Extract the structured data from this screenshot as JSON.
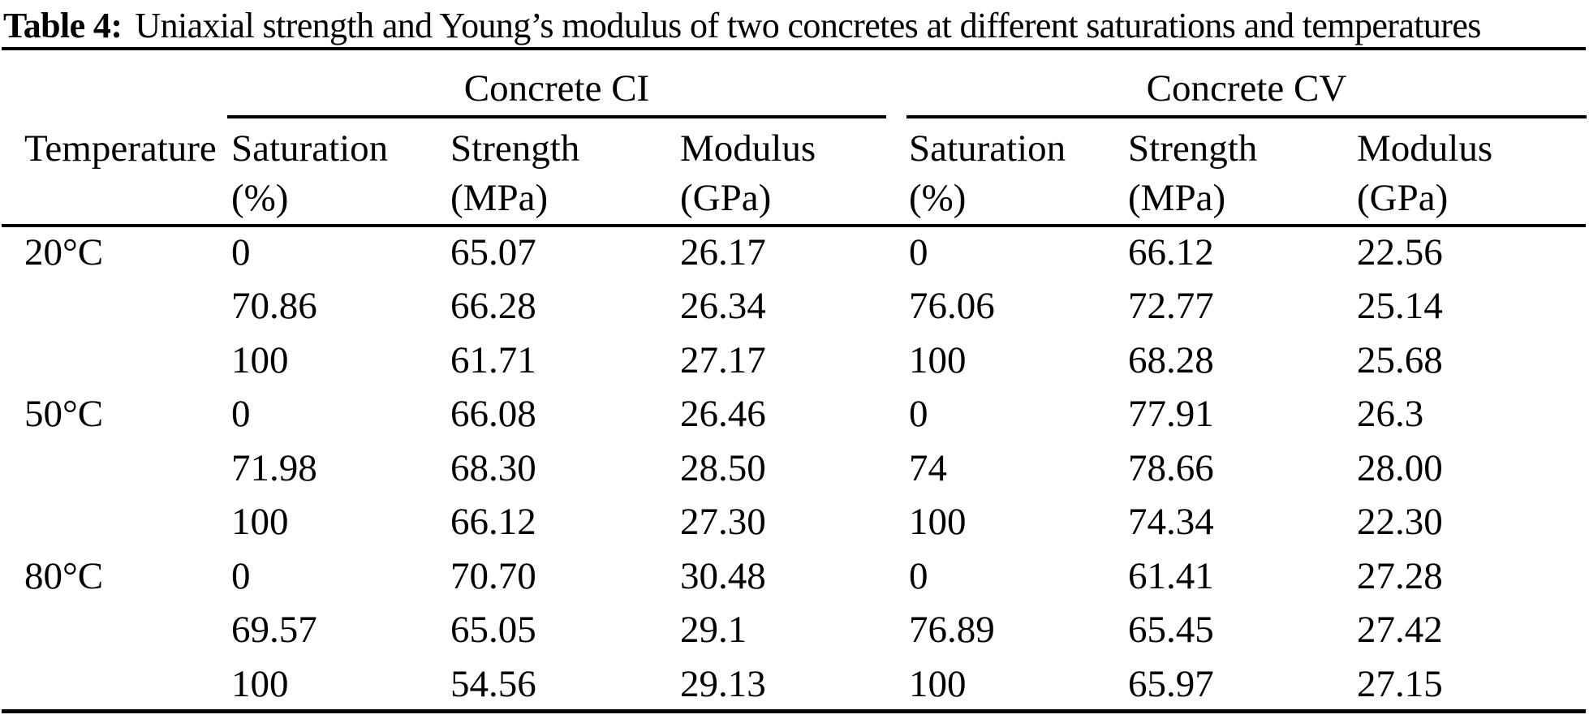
{
  "title": {
    "label": "Table 4:",
    "text": "Uniaxial strength and Young’s modulus of two concretes at different saturations and temperatures"
  },
  "groups": {
    "ci": "Concrete CI",
    "cv": "Concrete CV"
  },
  "columns": {
    "temperature": "Temperature",
    "saturation": "Saturation",
    "saturation_unit": "(%)",
    "strength": "Strength",
    "strength_unit": "(MPa)",
    "modulus": "Modulus",
    "modulus_unit": "(GPa)"
  },
  "rows": [
    {
      "temperature": "20°C",
      "ci": {
        "saturation": "0",
        "strength": "65.07",
        "modulus": "26.17"
      },
      "cv": {
        "saturation": "0",
        "strength": "66.12",
        "modulus": "22.56"
      }
    },
    {
      "temperature": "",
      "ci": {
        "saturation": "70.86",
        "strength": "66.28",
        "modulus": "26.34"
      },
      "cv": {
        "saturation": "76.06",
        "strength": "72.77",
        "modulus": "25.14"
      }
    },
    {
      "temperature": "",
      "ci": {
        "saturation": "100",
        "strength": "61.71",
        "modulus": "27.17"
      },
      "cv": {
        "saturation": "100",
        "strength": "68.28",
        "modulus": "25.68"
      }
    },
    {
      "temperature": "50°C",
      "ci": {
        "saturation": "0",
        "strength": "66.08",
        "modulus": "26.46"
      },
      "cv": {
        "saturation": "0",
        "strength": "77.91",
        "modulus": "26.3"
      }
    },
    {
      "temperature": "",
      "ci": {
        "saturation": "71.98",
        "strength": "68.30",
        "modulus": "28.50"
      },
      "cv": {
        "saturation": "74",
        "strength": "78.66",
        "modulus": "28.00"
      }
    },
    {
      "temperature": "",
      "ci": {
        "saturation": "100",
        "strength": "66.12",
        "modulus": "27.30"
      },
      "cv": {
        "saturation": "100",
        "strength": "74.34",
        "modulus": "22.30"
      }
    },
    {
      "temperature": "80°C",
      "ci": {
        "saturation": "0",
        "strength": "70.70",
        "modulus": "30.48"
      },
      "cv": {
        "saturation": "0",
        "strength": "61.41",
        "modulus": "27.28"
      }
    },
    {
      "temperature": "",
      "ci": {
        "saturation": "69.57",
        "strength": "65.05",
        "modulus": "29.1"
      },
      "cv": {
        "saturation": "76.89",
        "strength": "65.45",
        "modulus": "27.42"
      }
    },
    {
      "temperature": "",
      "ci": {
        "saturation": "100",
        "strength": "54.56",
        "modulus": "29.13"
      },
      "cv": {
        "saturation": "100",
        "strength": "65.97",
        "modulus": "27.15"
      }
    }
  ],
  "colors": {
    "text": "#000000",
    "background": "#ffffff",
    "rule": "#000000"
  }
}
